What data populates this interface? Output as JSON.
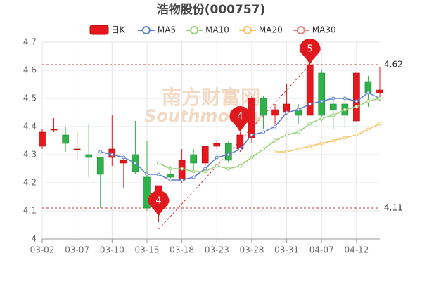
{
  "chart_data": {
    "type": "candlestick",
    "title": "浩物股份(000757)",
    "watermark": [
      "南方财富网",
      "Southmoney"
    ],
    "categories": [
      "03-02",
      null,
      null,
      "03-07",
      null,
      null,
      "03-10",
      null,
      null,
      "03-15",
      null,
      null,
      "03-18",
      null,
      null,
      "03-23",
      null,
      null,
      "03-28",
      null,
      null,
      "03-31",
      null,
      null,
      "04-07",
      null,
      null,
      "04-12",
      null,
      null
    ],
    "candles": {
      "name": "日K",
      "up_color": "#e8171d",
      "down_color": "#2fb24a",
      "open": [
        4.33,
        4.39,
        4.37,
        4.32,
        4.3,
        4.29,
        4.29,
        4.27,
        4.3,
        4.22,
        4.12,
        4.23,
        4.21,
        4.3,
        4.27,
        4.33,
        4.34,
        4.32,
        4.36,
        4.5,
        4.44,
        4.45,
        4.46,
        4.44,
        4.59,
        4.48,
        4.48,
        4.42,
        4.56,
        4.52
      ],
      "close": [
        4.38,
        4.39,
        4.34,
        4.32,
        4.29,
        4.23,
        4.32,
        4.28,
        4.24,
        4.11,
        4.19,
        4.22,
        4.28,
        4.27,
        4.33,
        4.34,
        4.28,
        4.37,
        4.5,
        4.44,
        4.46,
        4.48,
        4.44,
        4.62,
        4.44,
        4.46,
        4.44,
        4.59,
        4.52,
        4.53
      ],
      "high": [
        4.39,
        4.43,
        4.4,
        4.38,
        4.41,
        4.29,
        4.44,
        4.29,
        4.42,
        4.35,
        4.19,
        4.26,
        4.32,
        4.32,
        4.33,
        4.35,
        4.35,
        4.38,
        4.51,
        4.51,
        4.48,
        4.55,
        4.48,
        4.62,
        4.6,
        4.5,
        4.5,
        4.59,
        4.58,
        4.61
      ],
      "low": [
        4.32,
        4.38,
        4.31,
        4.28,
        4.22,
        4.11,
        4.26,
        4.18,
        4.23,
        4.1,
        4.06,
        4.21,
        4.2,
        4.24,
        4.24,
        4.32,
        4.27,
        4.31,
        4.34,
        4.39,
        4.41,
        4.44,
        4.41,
        4.44,
        4.42,
        4.39,
        4.4,
        4.42,
        4.47,
        4.49
      ]
    },
    "series": [
      {
        "name": "MA5",
        "color": "#5b7fd1",
        "values": [
          null,
          null,
          null,
          null,
          null,
          4.31,
          4.3,
          4.29,
          4.27,
          4.23,
          4.23,
          4.21,
          4.21,
          4.22,
          4.25,
          4.29,
          4.3,
          4.32,
          4.37,
          4.38,
          4.4,
          4.45,
          4.46,
          4.48,
          4.49,
          4.5,
          4.5,
          4.49,
          4.52,
          4.5
        ]
      },
      {
        "name": "MA10",
        "color": "#93d273",
        "values": [
          null,
          null,
          null,
          null,
          null,
          null,
          null,
          null,
          null,
          null,
          4.27,
          4.25,
          4.25,
          4.24,
          4.24,
          4.26,
          4.25,
          4.26,
          4.29,
          4.32,
          4.35,
          4.37,
          4.38,
          4.41,
          4.43,
          4.44,
          4.46,
          4.47,
          4.49,
          4.5
        ]
      },
      {
        "name": "MA20",
        "color": "#f5c35f",
        "values": [
          null,
          null,
          null,
          null,
          null,
          null,
          null,
          null,
          null,
          null,
          null,
          null,
          null,
          null,
          null,
          null,
          null,
          null,
          null,
          null,
          4.31,
          4.31,
          4.32,
          4.33,
          4.34,
          4.35,
          4.36,
          4.37,
          4.39,
          4.41
        ]
      },
      {
        "name": "MA30",
        "color": "#f07f7f",
        "values": [
          null,
          null,
          null,
          null,
          null,
          null,
          null,
          null,
          null,
          null,
          null,
          null,
          null,
          null,
          null,
          null,
          null,
          null,
          null,
          null,
          null,
          null,
          null,
          null,
          null,
          null,
          null,
          null,
          null,
          null
        ]
      }
    ],
    "ref_lines": [
      4.62,
      4.11
    ],
    "wave_labels": [
      "4",
      "4",
      "5"
    ],
    "ylim": [
      4,
      4.7
    ],
    "yticks": [
      4,
      4.1,
      4.2,
      4.3,
      4.4,
      4.5,
      4.6,
      4.7
    ],
    "grid": true
  }
}
